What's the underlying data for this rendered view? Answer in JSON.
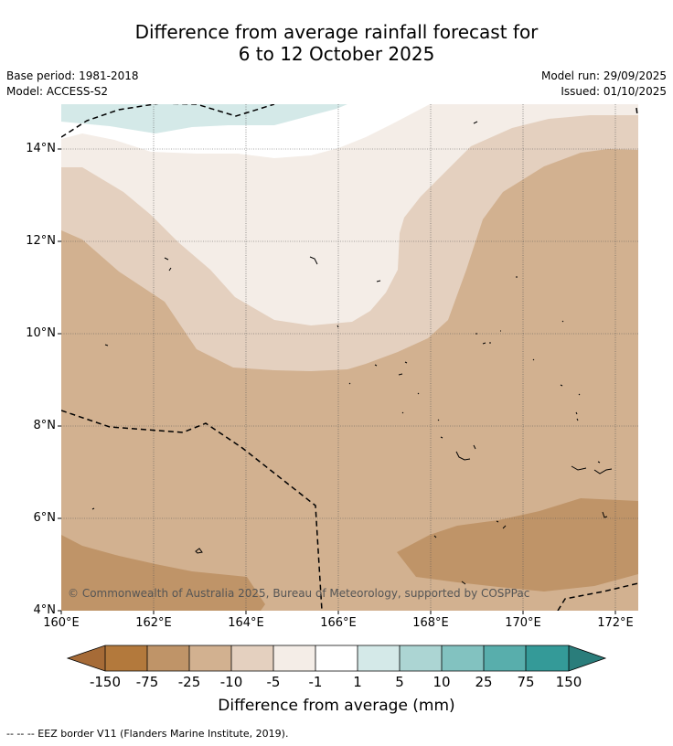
{
  "title": {
    "line1": "Difference from average rainfall forecast for",
    "line2": "6 to 12 October 2025"
  },
  "info": {
    "base_period": "Base period: 1981-2018",
    "model": "Model: ACCESS-S2",
    "model_run": "Model run: 29/09/2025",
    "issued": "Issued: 01/10/2025"
  },
  "map": {
    "lat_labels": [
      "14°N",
      "12°N",
      "10°N",
      "8°N",
      "6°N",
      "4°N"
    ],
    "lon_labels": [
      "160°E",
      "162°E",
      "164°E",
      "166°E",
      "168°E",
      "170°E",
      "172°E"
    ],
    "copyright": "© Commonwealth of Australia 2025, Bureau of Meteorology, supported by COSPPac",
    "colors": {
      "dry_75": "#bf9468",
      "dry_25": "#d2b190",
      "dry_10": "#e4d0bf",
      "dry_5": "#f4ede7",
      "neutral": "#ffffff",
      "wet_1": "#d4e9e8"
    }
  },
  "colorbar": {
    "labels": [
      "-150",
      "-75",
      "-25",
      "-10",
      "-5",
      "-1",
      "1",
      "5",
      "10",
      "25",
      "75",
      "150"
    ],
    "colors": [
      "#a66b37",
      "#b3793c",
      "#bf9468",
      "#d2b190",
      "#e4d0bf",
      "#f4ede7",
      "#ffffff",
      "#d4e9e8",
      "#acd5d3",
      "#82c2c0",
      "#58aeac",
      "#349a98",
      "#2a7d7b"
    ],
    "title": "Difference from average (mm)"
  },
  "footer": {
    "legend": "--  --  -- EEZ border V11 (Flanders Marine Institute, 2019)."
  }
}
